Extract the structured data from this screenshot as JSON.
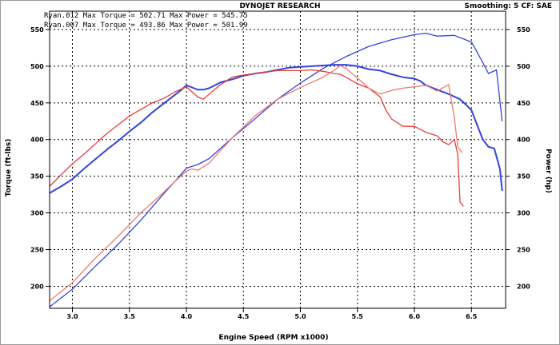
{
  "title": "DYNOJET RESEARCH",
  "smoothing_info": "Smoothing: 5  CF: SAE",
  "legend": [
    "Ryan.012 Max Torque = 502.71 Max Power = 545.75",
    "Ryan.007 Max Torque = 493.86 Max Power = 501.99"
  ],
  "colors": {
    "run_012": "#3344dd",
    "run_007": "#ee3a3a",
    "run_007_power": "#f07a6a",
    "grid": "#000000",
    "axis": "#000000"
  },
  "chart_data": {
    "type": "line",
    "title": "DYNOJET RESEARCH",
    "xlabel": "Engine Speed (RPM x1000)",
    "ylabel_left": "Torque (ft-lbs)",
    "ylabel_right": "Power (hp)",
    "xlim": [
      2.8,
      6.8
    ],
    "ylim": [
      170,
      575
    ],
    "x_ticks": [
      "3.0",
      "3.5",
      "4.0",
      "4.5",
      "5.0",
      "5.5",
      "6.0",
      "6.5"
    ],
    "y_ticks": [
      "200",
      "250",
      "300",
      "350",
      "400",
      "450",
      "500",
      "550"
    ],
    "grid": true,
    "series": [
      {
        "name": "Ryan.012",
        "measure": "torque",
        "color": "#3344dd",
        "points": [
          [
            2.8,
            327
          ],
          [
            2.9,
            336
          ],
          [
            3.0,
            346
          ],
          [
            3.1,
            360
          ],
          [
            3.2,
            373
          ],
          [
            3.3,
            386
          ],
          [
            3.4,
            398
          ],
          [
            3.5,
            411
          ],
          [
            3.6,
            423
          ],
          [
            3.7,
            437
          ],
          [
            3.8,
            449
          ],
          [
            3.9,
            461
          ],
          [
            3.95,
            467
          ],
          [
            4.0,
            474
          ],
          [
            4.05,
            471
          ],
          [
            4.1,
            468
          ],
          [
            4.15,
            468
          ],
          [
            4.2,
            470
          ],
          [
            4.3,
            478
          ],
          [
            4.4,
            482
          ],
          [
            4.5,
            487
          ],
          [
            4.6,
            490
          ],
          [
            4.7,
            492
          ],
          [
            4.8,
            495
          ],
          [
            4.9,
            498
          ],
          [
            5.0,
            499
          ],
          [
            5.1,
            500
          ],
          [
            5.2,
            501
          ],
          [
            5.3,
            502
          ],
          [
            5.4,
            502
          ],
          [
            5.5,
            500
          ],
          [
            5.6,
            496
          ],
          [
            5.7,
            494
          ],
          [
            5.8,
            489
          ],
          [
            5.9,
            485
          ],
          [
            6.0,
            483
          ],
          [
            6.05,
            480
          ],
          [
            6.1,
            474
          ],
          [
            6.2,
            468
          ],
          [
            6.3,
            462
          ],
          [
            6.4,
            455
          ],
          [
            6.45,
            448
          ],
          [
            6.5,
            440
          ],
          [
            6.55,
            420
          ],
          [
            6.6,
            400
          ],
          [
            6.65,
            390
          ],
          [
            6.7,
            388
          ],
          [
            6.75,
            360
          ],
          [
            6.77,
            330
          ]
        ]
      },
      {
        "name": "Ryan.012",
        "measure": "power",
        "color": "#3344dd",
        "points": [
          [
            2.8,
            172
          ],
          [
            3.0,
            196
          ],
          [
            3.2,
            227
          ],
          [
            3.4,
            257
          ],
          [
            3.6,
            290
          ],
          [
            3.8,
            326
          ],
          [
            3.9,
            343
          ],
          [
            4.0,
            361
          ],
          [
            4.1,
            366
          ],
          [
            4.2,
            374
          ],
          [
            4.4,
            402
          ],
          [
            4.6,
            428
          ],
          [
            4.8,
            455
          ],
          [
            5.0,
            477
          ],
          [
            5.2,
            497
          ],
          [
            5.4,
            513
          ],
          [
            5.6,
            527
          ],
          [
            5.8,
            536
          ],
          [
            6.0,
            543
          ],
          [
            6.1,
            545
          ],
          [
            6.2,
            541
          ],
          [
            6.35,
            542
          ],
          [
            6.5,
            533
          ],
          [
            6.6,
            505
          ],
          [
            6.65,
            490
          ],
          [
            6.72,
            495
          ],
          [
            6.77,
            425
          ]
        ]
      },
      {
        "name": "Ryan.007",
        "measure": "torque",
        "color": "#ee3a3a",
        "points": [
          [
            2.8,
            336
          ],
          [
            2.9,
            352
          ],
          [
            3.0,
            367
          ],
          [
            3.1,
            380
          ],
          [
            3.2,
            394
          ],
          [
            3.3,
            408
          ],
          [
            3.4,
            420
          ],
          [
            3.5,
            432
          ],
          [
            3.6,
            441
          ],
          [
            3.7,
            450
          ],
          [
            3.8,
            456
          ],
          [
            3.9,
            465
          ],
          [
            4.0,
            472
          ],
          [
            4.05,
            465
          ],
          [
            4.1,
            458
          ],
          [
            4.15,
            455
          ],
          [
            4.2,
            462
          ],
          [
            4.3,
            475
          ],
          [
            4.4,
            485
          ],
          [
            4.5,
            488
          ],
          [
            4.6,
            490
          ],
          [
            4.7,
            492
          ],
          [
            4.8,
            494
          ],
          [
            4.9,
            494
          ],
          [
            5.0,
            494
          ],
          [
            5.1,
            495
          ],
          [
            5.2,
            493
          ],
          [
            5.3,
            490
          ],
          [
            5.35,
            489
          ],
          [
            5.4,
            485
          ],
          [
            5.5,
            476
          ],
          [
            5.6,
            470
          ],
          [
            5.7,
            458
          ],
          [
            5.75,
            440
          ],
          [
            5.8,
            428
          ],
          [
            5.9,
            418
          ],
          [
            6.0,
            418
          ],
          [
            6.1,
            410
          ],
          [
            6.2,
            405
          ],
          [
            6.25,
            397
          ],
          [
            6.3,
            393
          ],
          [
            6.35,
            400
          ],
          [
            6.38,
            380
          ],
          [
            6.4,
            315
          ],
          [
            6.43,
            309
          ]
        ]
      },
      {
        "name": "Ryan.007",
        "measure": "power",
        "color": "#f07a6a",
        "points": [
          [
            2.8,
            180
          ],
          [
            3.0,
            205
          ],
          [
            3.2,
            238
          ],
          [
            3.4,
            268
          ],
          [
            3.6,
            300
          ],
          [
            3.8,
            328
          ],
          [
            3.9,
            343
          ],
          [
            4.0,
            357
          ],
          [
            4.05,
            360
          ],
          [
            4.1,
            358
          ],
          [
            4.2,
            368
          ],
          [
            4.4,
            402
          ],
          [
            4.6,
            432
          ],
          [
            4.8,
            455
          ],
          [
            5.0,
            471
          ],
          [
            5.2,
            485
          ],
          [
            5.3,
            495
          ],
          [
            5.35,
            501
          ],
          [
            5.4,
            497
          ],
          [
            5.5,
            484
          ],
          [
            5.6,
            470
          ],
          [
            5.7,
            462
          ],
          [
            5.8,
            467
          ],
          [
            5.9,
            470
          ],
          [
            6.0,
            472
          ],
          [
            6.1,
            474
          ],
          [
            6.2,
            466
          ],
          [
            6.3,
            475
          ],
          [
            6.35,
            430
          ],
          [
            6.38,
            390
          ],
          [
            6.42,
            382
          ]
        ]
      }
    ]
  }
}
